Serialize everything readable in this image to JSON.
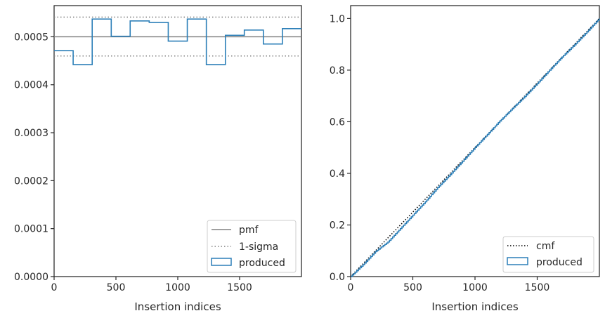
{
  "chart_data": [
    {
      "type": "step",
      "xlabel": "Insertion indices",
      "ylabel": "",
      "xlim": [
        0,
        2000
      ],
      "ylim": [
        0,
        0.000565
      ],
      "xticks": [
        0,
        500,
        1000,
        1500
      ],
      "yticks": [
        0,
        0.0001,
        0.0002,
        0.0003,
        0.0004,
        0.0005
      ],
      "ytick_labels": [
        "0.0000",
        "0.0001",
        "0.0002",
        "0.0003",
        "0.0004",
        "0.0005"
      ],
      "grid": false,
      "legend_position": "lower-right",
      "reference_lines": [
        {
          "name": "pmf",
          "value": 0.0005,
          "style": "solid",
          "color": "#808080"
        },
        {
          "name": "1-sigma",
          "value": 0.000541,
          "style": "dotted",
          "color": "#808080"
        },
        {
          "name": "1-sigma",
          "value": 0.00046,
          "style": "dotted",
          "color": "#808080"
        }
      ],
      "series": [
        {
          "name": "produced",
          "color": "#2c7fb8",
          "bin_edges": [
            0,
            154,
            308,
            462,
            615,
            769,
            923,
            1077,
            1231,
            1385,
            1538,
            1692,
            1846,
            2000
          ],
          "values": [
            0.000471,
            0.000442,
            0.000537,
            0.000501,
            0.000533,
            0.00053,
            0.000491,
            0.000537,
            0.000442,
            0.000503,
            0.000514,
            0.000485,
            0.000517
          ]
        }
      ],
      "legend": [
        "pmf",
        "1-sigma",
        "produced"
      ]
    },
    {
      "type": "line",
      "xlabel": "Insertion indices",
      "ylabel": "",
      "xlim": [
        0,
        2000
      ],
      "ylim": [
        0,
        1.05
      ],
      "xticks": [
        0,
        500,
        1000,
        1500
      ],
      "yticks": [
        0,
        0.2,
        0.4,
        0.6,
        0.8,
        1.0
      ],
      "ytick_labels": [
        "0.0",
        "0.2",
        "0.4",
        "0.6",
        "0.8",
        "1.0"
      ],
      "grid": false,
      "legend_position": "lower-right",
      "series": [
        {
          "name": "cmf",
          "style": "dotted",
          "color": "#000000",
          "x": [
            0,
            2000
          ],
          "y": [
            0,
            1.0
          ]
        },
        {
          "name": "produced",
          "style": "step",
          "color": "#2c7fb8",
          "x": [
            0,
            100,
            200,
            300,
            400,
            500,
            600,
            700,
            800,
            900,
            1000,
            1100,
            1200,
            1300,
            1400,
            1500,
            1600,
            1700,
            1800,
            1900,
            2000
          ],
          "y": [
            0,
            0.046,
            0.097,
            0.134,
            0.186,
            0.238,
            0.29,
            0.345,
            0.395,
            0.447,
            0.5,
            0.551,
            0.603,
            0.651,
            0.698,
            0.748,
            0.8,
            0.851,
            0.898,
            0.948,
            1.0
          ]
        }
      ],
      "legend": [
        "cmf",
        "produced"
      ]
    }
  ]
}
